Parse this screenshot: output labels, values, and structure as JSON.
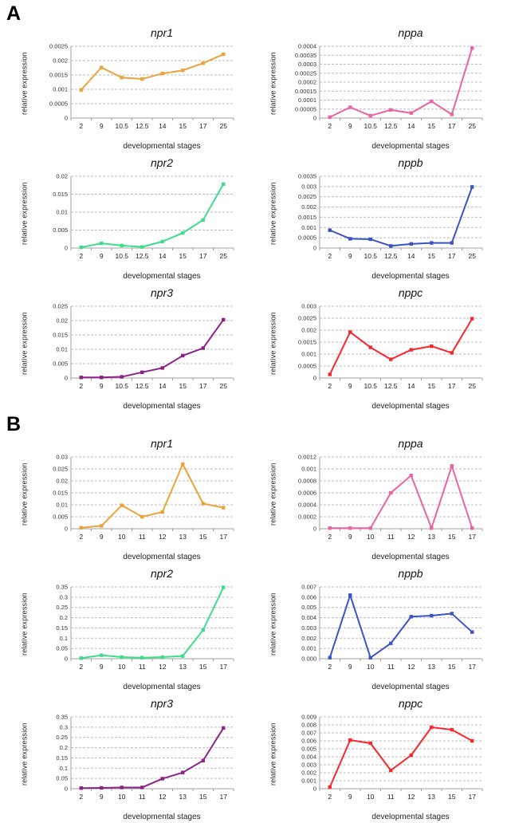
{
  "panels": [
    {
      "label": "A"
    },
    {
      "label": "B"
    }
  ],
  "axis_style": {
    "grid_color": "#bdbdbd",
    "axis_color": "#a0a0a0",
    "tick_text_color": "#333333"
  },
  "chart_data": [
    {
      "panel": "A",
      "type": "line",
      "title": "npr1",
      "color": "#EBA33D",
      "xlabel": "developmental stages",
      "ylabel": "relative expression",
      "categories": [
        "2",
        "9",
        "10.5",
        "12.5",
        "14",
        "15",
        "17",
        "25"
      ],
      "values": [
        0.00098,
        0.00176,
        0.00141,
        0.00136,
        0.00155,
        0.00166,
        0.00191,
        0.00222
      ],
      "ylim": [
        0,
        0.0025
      ],
      "ytick_labels": [
        "0",
        "0.0005",
        "0.001",
        "0.0015",
        "0.002",
        "0.0025"
      ],
      "grid": true,
      "marker": "square",
      "legend": "none"
    },
    {
      "panel": "A",
      "type": "line",
      "title": "nppa",
      "color": "#EC62A2",
      "xlabel": "developmental stages",
      "ylabel": "relative expression",
      "categories": [
        "2",
        "9",
        "10.5",
        "12.5",
        "14",
        "15",
        "17",
        "25"
      ],
      "values": [
        5e-06,
        6e-05,
        1.3e-05,
        4.5e-05,
        2.8e-05,
        9.3e-05,
        2e-05,
        0.00039
      ],
      "ylim": [
        0,
        0.0004
      ],
      "ytick_labels": [
        "0",
        "0.00005",
        "0.0001",
        "0.00015",
        "0.0002",
        "0.00025",
        "0.0003",
        "0.00035",
        "0.0004"
      ],
      "grid": true,
      "marker": "square",
      "legend": "none"
    },
    {
      "panel": "A",
      "type": "line",
      "title": "npr2",
      "color": "#3EDD8C",
      "xlabel": "developmental stages",
      "ylabel": "relative expression",
      "categories": [
        "2",
        "9",
        "10.5",
        "12.5",
        "14",
        "15",
        "17",
        "25"
      ],
      "values": [
        0.0002,
        0.0013,
        0.0007,
        0.0003,
        0.0018,
        0.0042,
        0.0078,
        0.0178
      ],
      "ylim": [
        0,
        0.02
      ],
      "ytick_labels": [
        "0",
        "0.005",
        "0.01",
        "0.015",
        "0.02"
      ],
      "grid": true,
      "marker": "square",
      "legend": "none"
    },
    {
      "panel": "A",
      "type": "line",
      "title": "nppb",
      "color": "#3A53C5",
      "xlabel": "developmental stages",
      "ylabel": "relative expression",
      "categories": [
        "2",
        "9",
        "10.5",
        "12.5",
        "14",
        "15",
        "17",
        "25"
      ],
      "values": [
        0.00087,
        0.00045,
        0.00043,
        0.0001,
        0.0002,
        0.00025,
        0.00025,
        0.00298
      ],
      "ylim": [
        0,
        0.0035
      ],
      "ytick_labels": [
        "0",
        "0.0005",
        "0.001",
        "0.0015",
        "0.002",
        "0.0025",
        "0.003",
        "0.0035"
      ],
      "grid": true,
      "marker": "square",
      "legend": "none"
    },
    {
      "panel": "A",
      "type": "line",
      "title": "npr3",
      "color": "#8B2386",
      "xlabel": "developmental stages",
      "ylabel": "relative expression",
      "categories": [
        "2",
        "9",
        "10.5",
        "12.5",
        "14",
        "15",
        "17",
        "25"
      ],
      "values": [
        0.0002,
        0.0002,
        0.0004,
        0.002,
        0.0035,
        0.0078,
        0.0104,
        0.0203
      ],
      "ylim": [
        0,
        0.025
      ],
      "ytick_labels": [
        "0",
        "0.005",
        "0.01",
        "0.015",
        "0.02",
        "0.025"
      ],
      "grid": true,
      "marker": "square",
      "legend": "none"
    },
    {
      "panel": "A",
      "type": "line",
      "title": "nppc",
      "color": "#F9262E",
      "xlabel": "developmental stages",
      "ylabel": "relative expression",
      "categories": [
        "2",
        "9",
        "10.5",
        "12.5",
        "14",
        "15",
        "17",
        "25"
      ],
      "values": [
        0.00015,
        0.00192,
        0.00128,
        0.00078,
        0.00118,
        0.00133,
        0.00105,
        0.00248
      ],
      "ylim": [
        0,
        0.003
      ],
      "ytick_labels": [
        "0",
        "0.0005",
        "0.001",
        "0.0015",
        "0.002",
        "0.0025",
        "0.003"
      ],
      "grid": true,
      "marker": "square",
      "legend": "none"
    },
    {
      "panel": "B",
      "type": "line",
      "title": "npr1",
      "color": "#EBA33D",
      "xlabel": "developmental stages",
      "ylabel": "relative expression",
      "categories": [
        "2",
        "9",
        "10",
        "11",
        "12",
        "13",
        "15",
        "17"
      ],
      "values": [
        0.0004,
        0.0012,
        0.0098,
        0.005,
        0.007,
        0.027,
        0.0105,
        0.0088
      ],
      "ylim": [
        0,
        0.03
      ],
      "ytick_labels": [
        "0",
        "0.005",
        "0.01",
        "0.015",
        "0.02",
        "0.025",
        "0.03"
      ],
      "grid": true,
      "marker": "square",
      "legend": "none"
    },
    {
      "panel": "B",
      "type": "line",
      "title": "nppa",
      "color": "#EC62A2",
      "xlabel": "developmental stages",
      "ylabel": "relative expression",
      "categories": [
        "2",
        "9",
        "10",
        "11",
        "12",
        "13",
        "15",
        "17"
      ],
      "values": [
        1e-05,
        1e-05,
        1e-05,
        0.0006,
        0.00089,
        1e-05,
        0.00105,
        1e-05
      ],
      "ylim": [
        0,
        0.0012
      ],
      "ytick_labels": [
        "0",
        "0.0002",
        "0.0004",
        "0.0006",
        "0.0008",
        "0.001",
        "0.0012"
      ],
      "grid": true,
      "marker": "square",
      "legend": "none"
    },
    {
      "panel": "B",
      "type": "line",
      "title": "npr2",
      "color": "#3EDD8C",
      "xlabel": "developmental stages",
      "ylabel": "relative expression",
      "categories": [
        "2",
        "9",
        "10",
        "11",
        "12",
        "13",
        "15",
        "17"
      ],
      "values": [
        0.003,
        0.017,
        0.008,
        0.005,
        0.008,
        0.013,
        0.14,
        0.348
      ],
      "ylim": [
        0,
        0.35
      ],
      "ytick_labels": [
        "0",
        "0.05",
        "0.1",
        "0.15",
        "0.2",
        "0.25",
        "0.3",
        "0.35"
      ],
      "grid": true,
      "marker": "square",
      "legend": "none"
    },
    {
      "panel": "B",
      "type": "line",
      "title": "nppb",
      "color": "#3A53C5",
      "xlabel": "developmental stages",
      "ylabel": "relative expression",
      "categories": [
        "2",
        "9",
        "10",
        "11",
        "12",
        "13",
        "15",
        "17"
      ],
      "values": [
        0.0001,
        0.0062,
        0.0001,
        0.0015,
        0.0041,
        0.0042,
        0.0044,
        0.0026
      ],
      "ylim": [
        0,
        0.007
      ],
      "ytick_labels": [
        "0.000",
        "0.001",
        "0.002",
        "0.003",
        "0.004",
        "0.005",
        "0.006",
        "0.007"
      ],
      "grid": true,
      "marker": "square",
      "legend": "none"
    },
    {
      "panel": "B",
      "type": "line",
      "title": "npr3",
      "color": "#8B2386",
      "xlabel": "developmental stages",
      "ylabel": "relative expression",
      "categories": [
        "2",
        "9",
        "10",
        "11",
        "12",
        "13",
        "15",
        "17"
      ],
      "values": [
        0.003,
        0.004,
        0.006,
        0.006,
        0.049,
        0.079,
        0.137,
        0.296
      ],
      "ylim": [
        0,
        0.35
      ],
      "ytick_labels": [
        "0",
        "0.05",
        "0.1",
        "0.15",
        "0.2",
        "0.25",
        "0.3",
        "0.35"
      ],
      "grid": true,
      "marker": "square",
      "legend": "none"
    },
    {
      "panel": "B",
      "type": "line",
      "title": "nppc",
      "color": "#F9262E",
      "xlabel": "developmental stages",
      "ylabel": "relative expression",
      "categories": [
        "2",
        "9",
        "10",
        "11",
        "12",
        "13",
        "15",
        "17"
      ],
      "values": [
        0.0002,
        0.0061,
        0.0057,
        0.0023,
        0.0042,
        0.0077,
        0.0074,
        0.006
      ],
      "ylim": [
        0,
        0.009
      ],
      "ytick_labels": [
        "0",
        "0.001",
        "0.002",
        "0.003",
        "0.004",
        "0.005",
        "0.006",
        "0.007",
        "0.008",
        "0.009"
      ],
      "grid": true,
      "marker": "square",
      "legend": "none"
    }
  ]
}
